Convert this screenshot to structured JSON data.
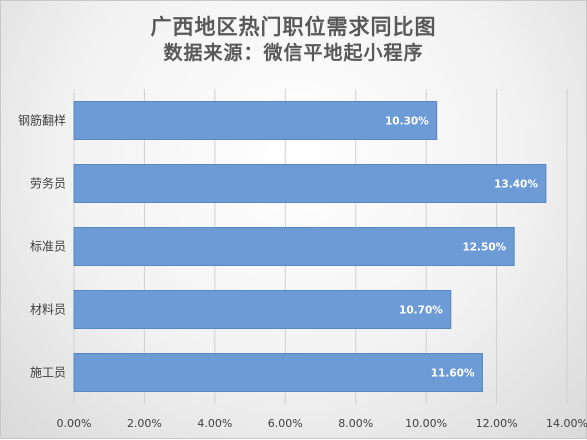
{
  "chart_data": {
    "type": "bar",
    "orientation": "horizontal",
    "title": "广西地区热门职位需求同比图",
    "subtitle": "数据来源：微信平地起小程序",
    "categories": [
      "钢筋翻样",
      "劳务员",
      "标准员",
      "材料员",
      "施工员"
    ],
    "values": [
      10.3,
      13.4,
      12.5,
      10.7,
      11.6
    ],
    "data_labels": [
      "10.30%",
      "13.40%",
      "12.50%",
      "10.70%",
      "11.60%"
    ],
    "xlim": [
      0,
      14
    ],
    "x_ticks": [
      "0.00%",
      "2.00%",
      "4.00%",
      "6.00%",
      "8.00%",
      "10.00%",
      "12.00%",
      "14.00%"
    ],
    "grid": true,
    "legend": "none",
    "bar_color": "#6d9bd6",
    "bar_edge_color": "#5b86c0"
  }
}
